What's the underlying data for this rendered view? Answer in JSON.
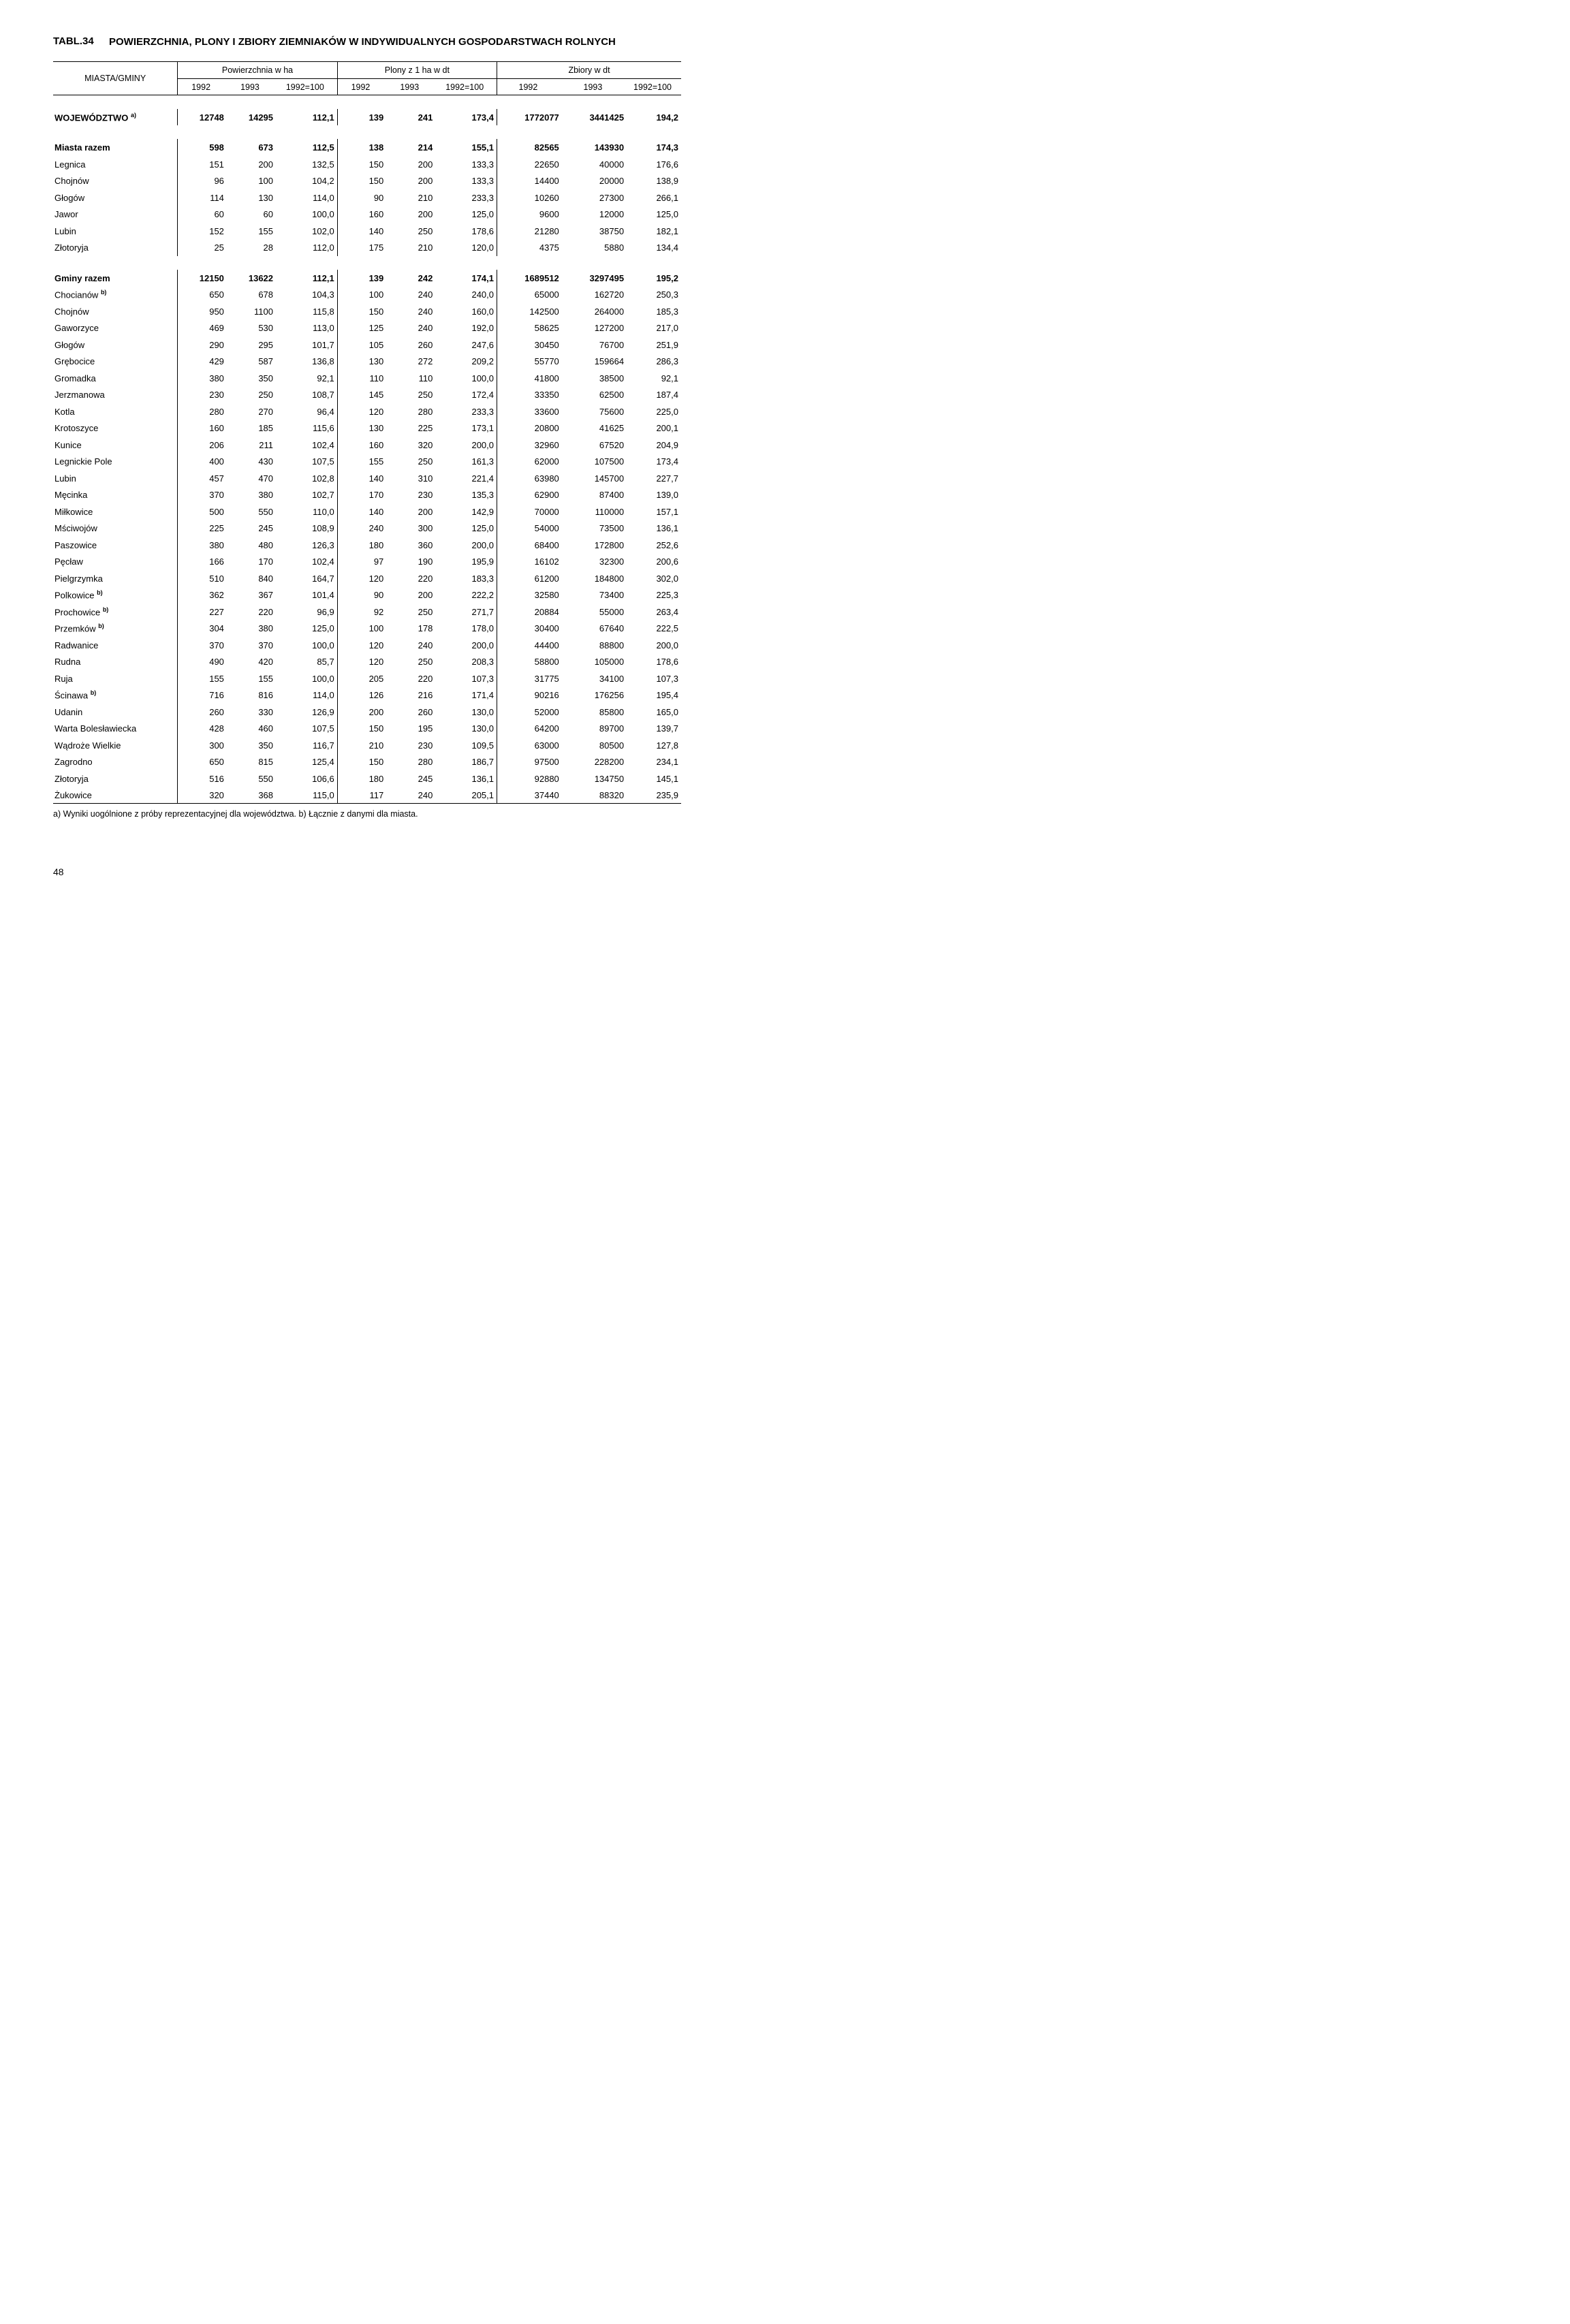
{
  "tablno": "TABL.34",
  "title": "POWIERZCHNIA, PLONY I ZBIORY ZIEMNIAKÓW W INDYWIDUALNYCH GOSPODARSTWACH ROLNYCH",
  "header": {
    "rowLabel": "MIASTA/GMINY",
    "groups": [
      "Powierzchnia w ha",
      "Plony z 1 ha w dt",
      "Zbiory w dt"
    ],
    "years": [
      "1992",
      "1993",
      "1992=100"
    ]
  },
  "sections": [
    {
      "type": "section",
      "rows": [
        {
          "label": "WOJEWÓDZTWO",
          "foot": "a)",
          "cells": [
            "12748",
            "14295",
            "112,1",
            "139",
            "241",
            "173,4",
            "1772077",
            "3441425",
            "194,2"
          ],
          "bold": true
        }
      ]
    },
    {
      "type": "section",
      "rows": [
        {
          "label": "Miasta razem",
          "cells": [
            "598",
            "673",
            "112,5",
            "138",
            "214",
            "155,1",
            "82565",
            "143930",
            "174,3"
          ],
          "bold": true
        },
        {
          "label": "Legnica",
          "cells": [
            "151",
            "200",
            "132,5",
            "150",
            "200",
            "133,3",
            "22650",
            "40000",
            "176,6"
          ]
        },
        {
          "label": "Chojnów",
          "cells": [
            "96",
            "100",
            "104,2",
            "150",
            "200",
            "133,3",
            "14400",
            "20000",
            "138,9"
          ]
        },
        {
          "label": "Głogów",
          "cells": [
            "114",
            "130",
            "114,0",
            "90",
            "210",
            "233,3",
            "10260",
            "27300",
            "266,1"
          ]
        },
        {
          "label": "Jawor",
          "cells": [
            "60",
            "60",
            "100,0",
            "160",
            "200",
            "125,0",
            "9600",
            "12000",
            "125,0"
          ]
        },
        {
          "label": "Lubin",
          "cells": [
            "152",
            "155",
            "102,0",
            "140",
            "250",
            "178,6",
            "21280",
            "38750",
            "182,1"
          ]
        },
        {
          "label": "Złotoryja",
          "cells": [
            "25",
            "28",
            "112,0",
            "175",
            "210",
            "120,0",
            "4375",
            "5880",
            "134,4"
          ]
        }
      ]
    },
    {
      "type": "section",
      "rows": [
        {
          "label": "Gminy razem",
          "cells": [
            "12150",
            "13622",
            "112,1",
            "139",
            "242",
            "174,1",
            "1689512",
            "3297495",
            "195,2"
          ],
          "bold": true
        },
        {
          "label": "Chocianów",
          "foot": "b)",
          "cells": [
            "650",
            "678",
            "104,3",
            "100",
            "240",
            "240,0",
            "65000",
            "162720",
            "250,3"
          ]
        },
        {
          "label": "Chojnów",
          "cells": [
            "950",
            "1100",
            "115,8",
            "150",
            "240",
            "160,0",
            "142500",
            "264000",
            "185,3"
          ]
        },
        {
          "label": "Gaworzyce",
          "cells": [
            "469",
            "530",
            "113,0",
            "125",
            "240",
            "192,0",
            "58625",
            "127200",
            "217,0"
          ]
        },
        {
          "label": "Głogów",
          "cells": [
            "290",
            "295",
            "101,7",
            "105",
            "260",
            "247,6",
            "30450",
            "76700",
            "251,9"
          ]
        },
        {
          "label": "Grębocice",
          "cells": [
            "429",
            "587",
            "136,8",
            "130",
            "272",
            "209,2",
            "55770",
            "159664",
            "286,3"
          ]
        },
        {
          "label": "Gromadka",
          "cells": [
            "380",
            "350",
            "92,1",
            "110",
            "110",
            "100,0",
            "41800",
            "38500",
            "92,1"
          ]
        },
        {
          "label": "Jerzmanowa",
          "cells": [
            "230",
            "250",
            "108,7",
            "145",
            "250",
            "172,4",
            "33350",
            "62500",
            "187,4"
          ]
        },
        {
          "label": "Kotla",
          "cells": [
            "280",
            "270",
            "96,4",
            "120",
            "280",
            "233,3",
            "33600",
            "75600",
            "225,0"
          ]
        },
        {
          "label": "Krotoszyce",
          "cells": [
            "160",
            "185",
            "115,6",
            "130",
            "225",
            "173,1",
            "20800",
            "41625",
            "200,1"
          ]
        },
        {
          "label": "Kunice",
          "cells": [
            "206",
            "211",
            "102,4",
            "160",
            "320",
            "200,0",
            "32960",
            "67520",
            "204,9"
          ]
        },
        {
          "label": "Legnickie Pole",
          "cells": [
            "400",
            "430",
            "107,5",
            "155",
            "250",
            "161,3",
            "62000",
            "107500",
            "173,4"
          ]
        },
        {
          "label": "Lubin",
          "cells": [
            "457",
            "470",
            "102,8",
            "140",
            "310",
            "221,4",
            "63980",
            "145700",
            "227,7"
          ]
        },
        {
          "label": "Męcinka",
          "cells": [
            "370",
            "380",
            "102,7",
            "170",
            "230",
            "135,3",
            "62900",
            "87400",
            "139,0"
          ]
        },
        {
          "label": "Miłkowice",
          "cells": [
            "500",
            "550",
            "110,0",
            "140",
            "200",
            "142,9",
            "70000",
            "110000",
            "157,1"
          ]
        },
        {
          "label": "Mściwojów",
          "cells": [
            "225",
            "245",
            "108,9",
            "240",
            "300",
            "125,0",
            "54000",
            "73500",
            "136,1"
          ]
        },
        {
          "label": "Paszowice",
          "cells": [
            "380",
            "480",
            "126,3",
            "180",
            "360",
            "200,0",
            "68400",
            "172800",
            "252,6"
          ]
        },
        {
          "label": "Pęcław",
          "cells": [
            "166",
            "170",
            "102,4",
            "97",
            "190",
            "195,9",
            "16102",
            "32300",
            "200,6"
          ]
        },
        {
          "label": "Pielgrzymka",
          "cells": [
            "510",
            "840",
            "164,7",
            "120",
            "220",
            "183,3",
            "61200",
            "184800",
            "302,0"
          ]
        },
        {
          "label": "Polkowice",
          "foot": "b)",
          "cells": [
            "362",
            "367",
            "101,4",
            "90",
            "200",
            "222,2",
            "32580",
            "73400",
            "225,3"
          ]
        },
        {
          "label": "Prochowice",
          "foot": "b)",
          "cells": [
            "227",
            "220",
            "96,9",
            "92",
            "250",
            "271,7",
            "20884",
            "55000",
            "263,4"
          ]
        },
        {
          "label": "Przemków",
          "foot": "b)",
          "cells": [
            "304",
            "380",
            "125,0",
            "100",
            "178",
            "178,0",
            "30400",
            "67640",
            "222,5"
          ]
        },
        {
          "label": "Radwanice",
          "cells": [
            "370",
            "370",
            "100,0",
            "120",
            "240",
            "200,0",
            "44400",
            "88800",
            "200,0"
          ]
        },
        {
          "label": "Rudna",
          "cells": [
            "490",
            "420",
            "85,7",
            "120",
            "250",
            "208,3",
            "58800",
            "105000",
            "178,6"
          ]
        },
        {
          "label": "Ruja",
          "cells": [
            "155",
            "155",
            "100,0",
            "205",
            "220",
            "107,3",
            "31775",
            "34100",
            "107,3"
          ]
        },
        {
          "label": "Ścinawa",
          "foot": "b)",
          "cells": [
            "716",
            "816",
            "114,0",
            "126",
            "216",
            "171,4",
            "90216",
            "176256",
            "195,4"
          ]
        },
        {
          "label": "Udanin",
          "cells": [
            "260",
            "330",
            "126,9",
            "200",
            "260",
            "130,0",
            "52000",
            "85800",
            "165,0"
          ]
        },
        {
          "label": "Warta Bolesławiecka",
          "cells": [
            "428",
            "460",
            "107,5",
            "150",
            "195",
            "130,0",
            "64200",
            "89700",
            "139,7"
          ]
        },
        {
          "label": "Wądroże Wielkie",
          "cells": [
            "300",
            "350",
            "116,7",
            "210",
            "230",
            "109,5",
            "63000",
            "80500",
            "127,8"
          ]
        },
        {
          "label": "Zagrodno",
          "cells": [
            "650",
            "815",
            "125,4",
            "150",
            "280",
            "186,7",
            "97500",
            "228200",
            "234,1"
          ]
        },
        {
          "label": "Złotoryja",
          "cells": [
            "516",
            "550",
            "106,6",
            "180",
            "245",
            "136,1",
            "92880",
            "134750",
            "145,1"
          ]
        },
        {
          "label": "Żukowice",
          "cells": [
            "320",
            "368",
            "115,0",
            "117",
            "240",
            "205,1",
            "37440",
            "88320",
            "235,9"
          ]
        }
      ]
    }
  ],
  "footer": "a) Wyniki uogólnione z próby reprezentacyjnej dla województwa. b) Łącznie z danymi dla miasta.",
  "pageNumber": "48"
}
